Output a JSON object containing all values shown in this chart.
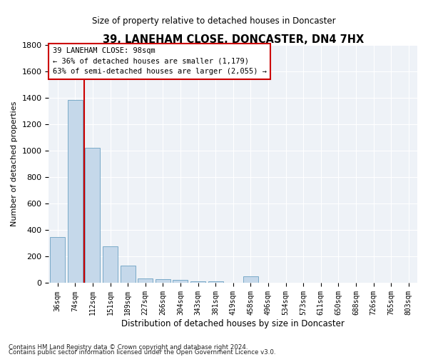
{
  "title": "39, LANEHAM CLOSE, DONCASTER, DN4 7HX",
  "subtitle": "Size of property relative to detached houses in Doncaster",
  "xlabel": "Distribution of detached houses by size in Doncaster",
  "ylabel": "Number of detached properties",
  "categories": [
    "36sqm",
    "74sqm",
    "112sqm",
    "151sqm",
    "189sqm",
    "227sqm",
    "266sqm",
    "304sqm",
    "343sqm",
    "381sqm",
    "419sqm",
    "458sqm",
    "496sqm",
    "534sqm",
    "573sqm",
    "611sqm",
    "650sqm",
    "688sqm",
    "726sqm",
    "765sqm",
    "803sqm"
  ],
  "values": [
    350,
    1380,
    1020,
    280,
    130,
    35,
    28,
    25,
    15,
    12,
    0,
    50,
    0,
    0,
    0,
    0,
    0,
    0,
    0,
    0,
    0
  ],
  "bar_color": "#c5d8ea",
  "bar_edge_color": "#7aaac8",
  "vline_x": 1.5,
  "vline_color": "#cc0000",
  "annotation_text": "39 LANEHAM CLOSE: 98sqm\n← 36% of detached houses are smaller (1,179)\n63% of semi-detached houses are larger (2,055) →",
  "annotation_box_color": "#ffffff",
  "annotation_box_edge": "#cc0000",
  "ylim": [
    0,
    1800
  ],
  "yticks": [
    0,
    200,
    400,
    600,
    800,
    1000,
    1200,
    1400,
    1600,
    1800
  ],
  "footer_line1": "Contains HM Land Registry data © Crown copyright and database right 2024.",
  "footer_line2": "Contains public sector information licensed under the Open Government Licence v3.0.",
  "plot_bg_color": "#eef2f7"
}
